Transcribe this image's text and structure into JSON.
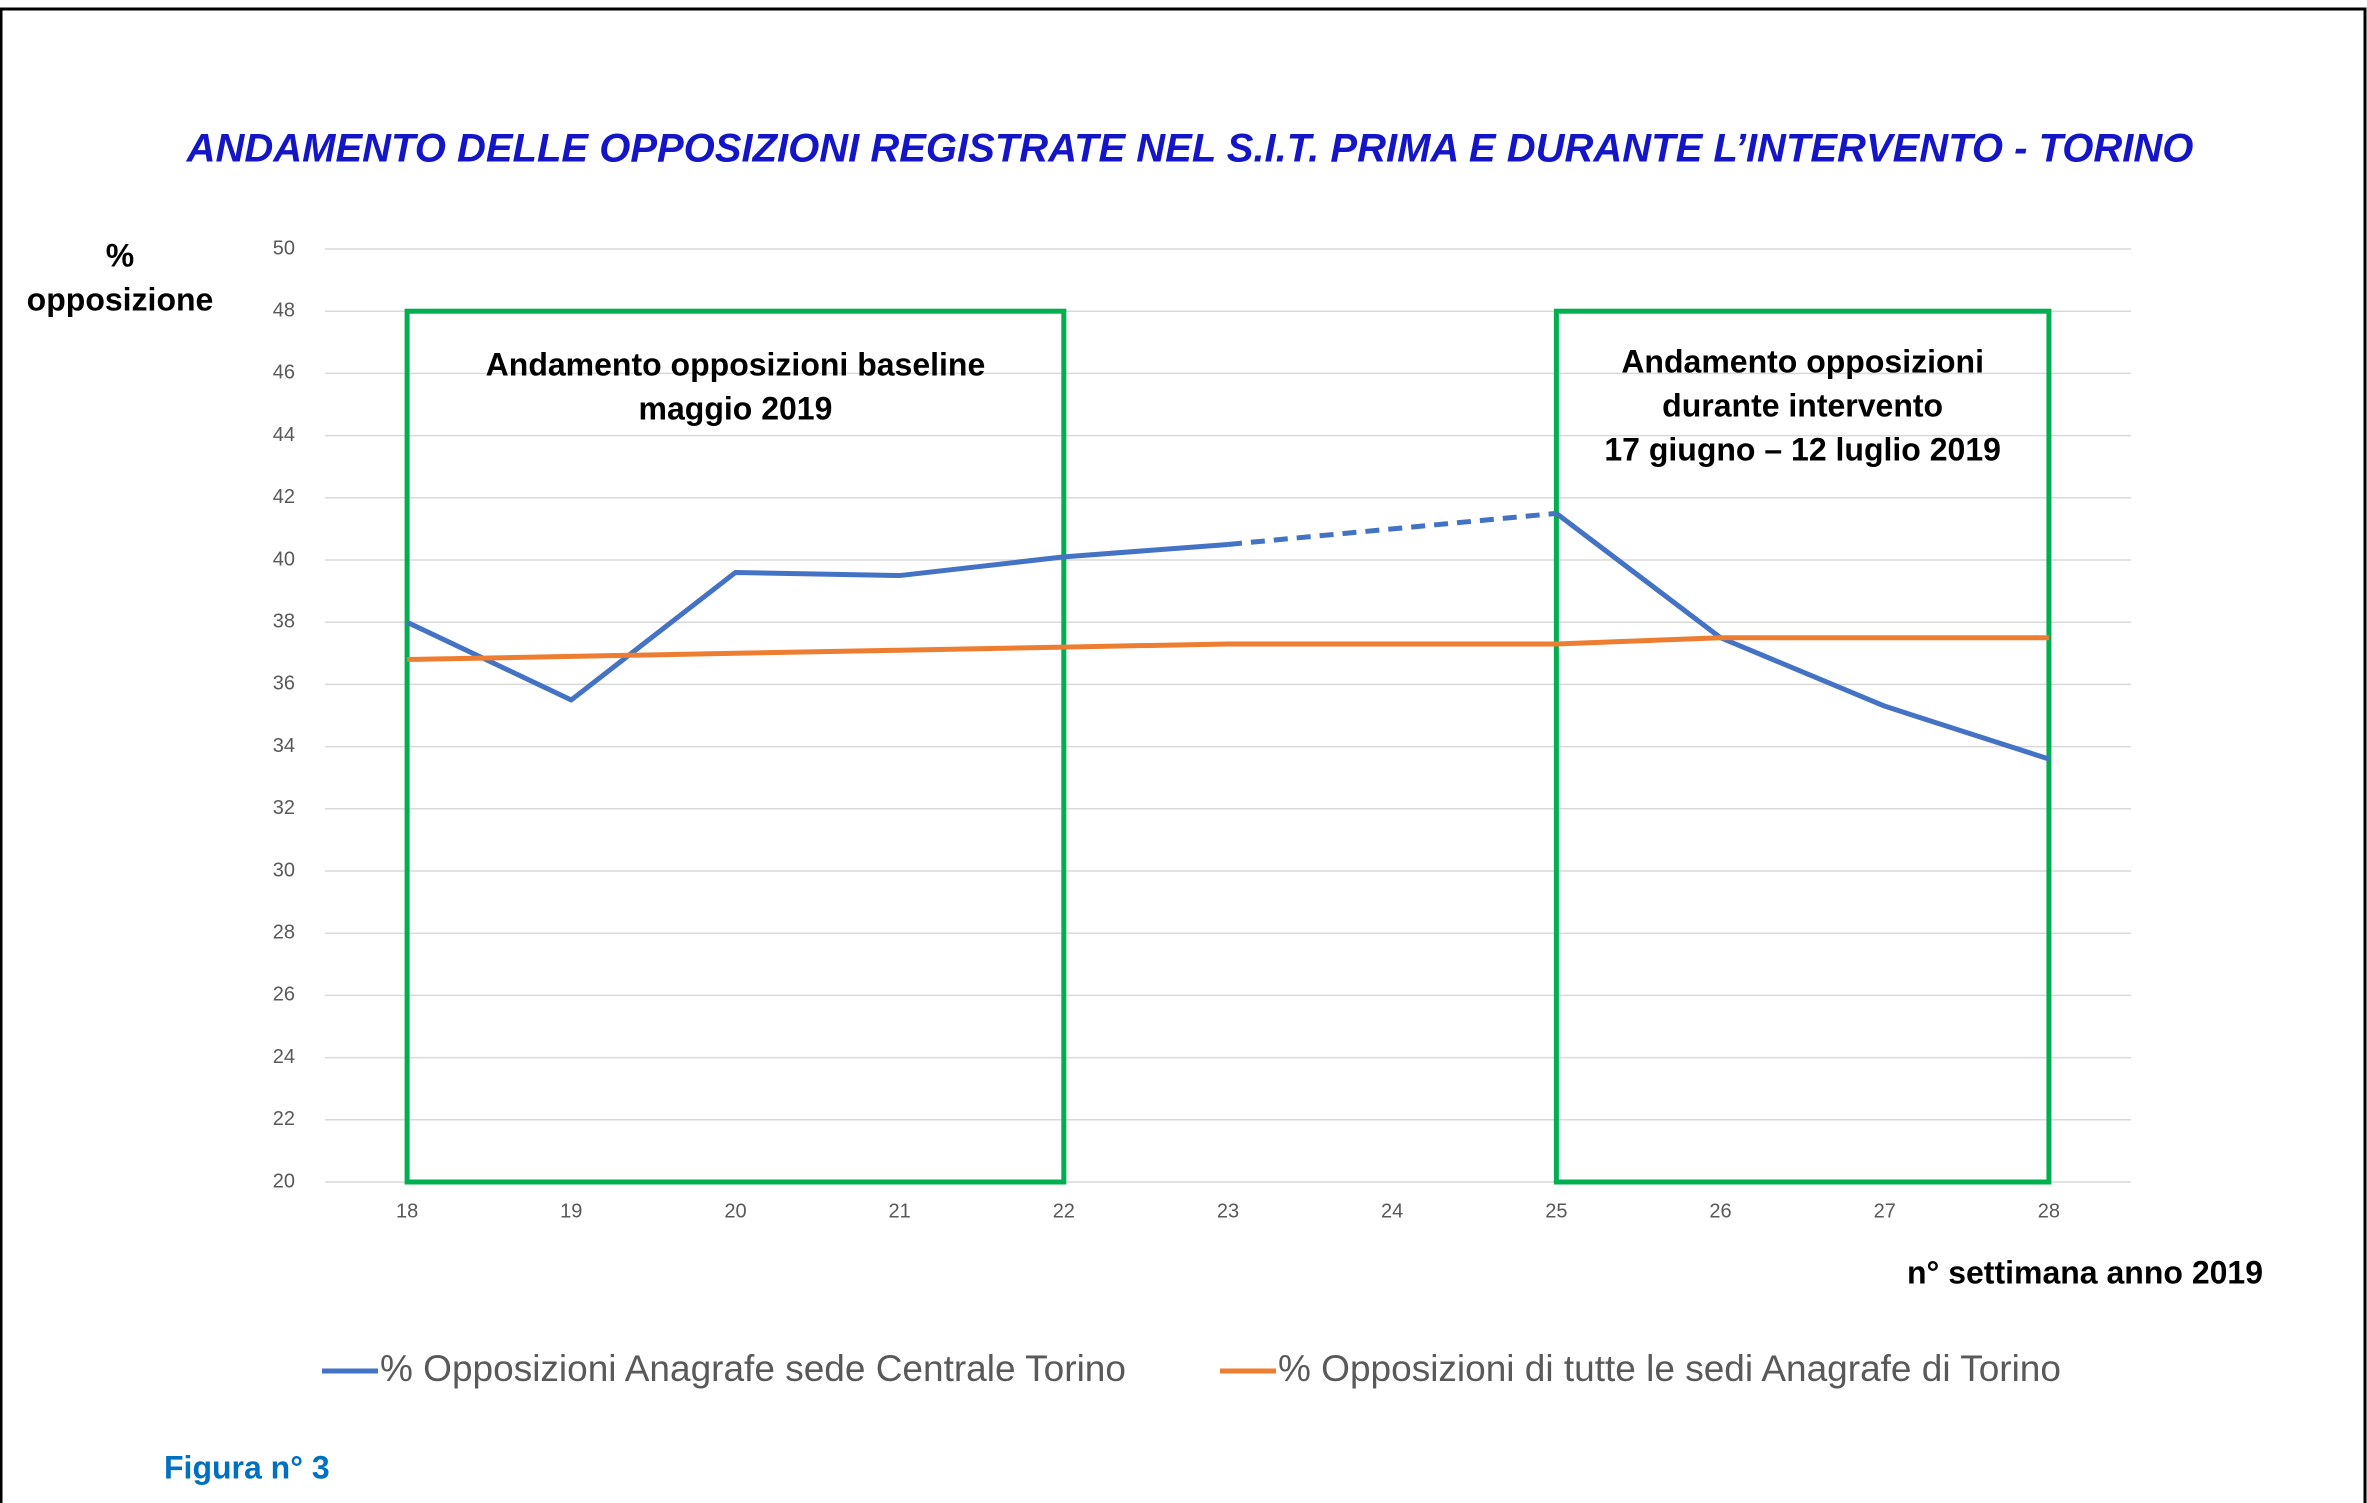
{
  "chart_data": {
    "type": "line",
    "title": "ANDAMENTO DELLE OPPOSIZIONI REGISTRATE NEL S.I.T. PRIMA E DURANTE L’INTERVENTO - TORINO",
    "y_label": [
      "%",
      "opposizione"
    ],
    "x_label": "n° settimana anno 2019",
    "x": [
      18,
      19,
      20,
      21,
      22,
      23,
      24,
      25,
      26,
      27,
      28
    ],
    "xlim": [
      17.5,
      28.5
    ],
    "xticks": [
      18,
      19,
      20,
      21,
      22,
      23,
      24,
      25,
      26,
      27,
      28
    ],
    "ylim": [
      20,
      50
    ],
    "yticks": [
      20,
      22,
      24,
      26,
      28,
      30,
      32,
      34,
      36,
      38,
      40,
      42,
      44,
      46,
      48,
      50
    ],
    "grid": true,
    "legend": "bottom",
    "series": [
      {
        "name": "% Opposizioni Anagrafe sede Centrale Torino",
        "color": "#4472c4",
        "values": [
          38.0,
          35.5,
          39.6,
          39.5,
          40.1,
          40.5,
          null,
          41.5,
          37.5,
          35.3,
          33.6
        ]
      },
      {
        "name": "% Opposizioni di tutte le sedi Anagrafe di Torino",
        "color": "#ed7d31",
        "values": [
          36.8,
          36.9,
          37.0,
          37.1,
          37.2,
          37.3,
          37.3,
          37.3,
          37.5,
          37.5,
          37.5
        ]
      }
    ],
    "annotations": [
      {
        "text": [
          "Andamento opposizioni baseline",
          "maggio 2019"
        ],
        "x_range": [
          18,
          22
        ],
        "y_range": [
          20,
          48
        ],
        "color": "#00b050"
      },
      {
        "text": [
          "Andamento opposizioni",
          "durante intervento",
          "17 giugno – 12 luglio 2019"
        ],
        "x_range": [
          25,
          28
        ],
        "y_range": [
          20,
          48
        ],
        "color": "#00b050"
      }
    ]
  },
  "figure_label": "Figura n° 3"
}
